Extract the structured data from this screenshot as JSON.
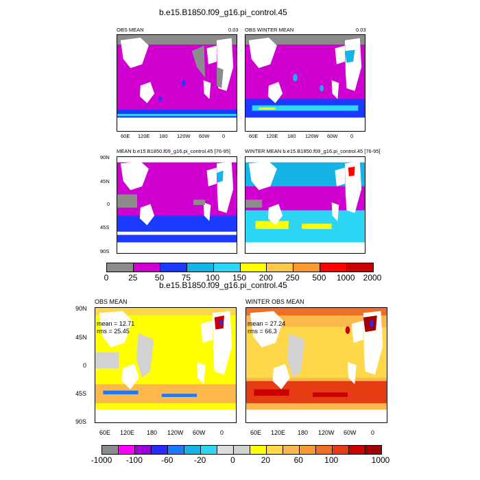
{
  "figure1": {
    "title": "b.e15.B1850.f09_g16.pi_control.45",
    "panels": [
      {
        "title_left": "OBS MEAN",
        "title_right": "0.03"
      },
      {
        "title_left": "OBS WINTER MEAN",
        "title_right": "0.03"
      },
      {
        "title_left": "MEAN b.e15.B1850.f09_g16.pi_control.45 [76-95]",
        "title_right": ""
      },
      {
        "title_left": "WINTER MEAN b.e15.B1850.f09_g16.pi_control.45 [76-95]",
        "title_right": ""
      }
    ],
    "lat_ticks": [
      "90N",
      "45N",
      "0",
      "45S",
      "90S"
    ],
    "lon_ticks": [
      "60E",
      "120E",
      "180",
      "120W",
      "60W",
      "0"
    ],
    "colorbar_labels": [
      "0",
      "25",
      "50",
      "75",
      "100",
      "150",
      "200",
      "250",
      "500",
      "1000",
      "2000"
    ],
    "colorbar_colors": [
      "#8c8c8c",
      "#d000d0",
      "#1a3bff",
      "#14b4e6",
      "#2dd6f5",
      "#ffff00",
      "#fcc84a",
      "#f89a30",
      "#ff0000",
      "#c80000"
    ]
  },
  "figure2": {
    "title": "b.e15.B1850.f09_g16.pi_control.45",
    "panels": [
      {
        "title_left": "OBS MEAN",
        "stat_mean": "mean = 12.71",
        "stat_rms": "rms = 25.45"
      },
      {
        "title_left": "WINTER OBS MEAN",
        "stat_mean": "mean = 27.24",
        "stat_rms": "rms = 66.3"
      }
    ],
    "lat_ticks": [
      "90N",
      "45N",
      "0",
      "45S",
      "90S"
    ],
    "lon_ticks": [
      "60E",
      "120E",
      "180",
      "120W",
      "60W",
      "0"
    ],
    "colorbar_labels": [
      "-1000",
      "-100",
      "-60",
      "-20",
      "0",
      "20",
      "60",
      "100",
      "1000"
    ],
    "colorbar_colors": [
      "#8c8c8c",
      "#ff00ff",
      "#9b00d8",
      "#2828ff",
      "#1e78ff",
      "#14b4e6",
      "#2dd6f5",
      "#dcdcdc",
      "#d2d2d2",
      "#ffff00",
      "#ffd84a",
      "#fcb84a",
      "#f89a30",
      "#f06e28",
      "#e63c14",
      "#c80000",
      "#a00000"
    ]
  },
  "chart_data": [
    {
      "type": "heatmap",
      "title": "OBS MEAN",
      "projection": "cylindrical equidistant, centered 180",
      "xlim": [
        "60E",
        "0"
      ],
      "ylim": [
        "90S",
        "90N"
      ],
      "levels": [
        0,
        25,
        50,
        75,
        100,
        150,
        200,
        250,
        500,
        1000,
        2000
      ],
      "dominant_range": [
        25,
        50
      ]
    },
    {
      "type": "heatmap",
      "title": "OBS WINTER MEAN",
      "levels": [
        0,
        25,
        50,
        75,
        100,
        150,
        200,
        250,
        500,
        1000,
        2000
      ],
      "dominant_range": [
        25,
        75
      ]
    },
    {
      "type": "heatmap",
      "title": "MEAN b.e15.B1850.f09_g16.pi_control.45 [76-95]",
      "levels": [
        0,
        25,
        50,
        75,
        100,
        150,
        200,
        250,
        500,
        1000,
        2000
      ],
      "dominant_range": [
        25,
        50
      ]
    },
    {
      "type": "heatmap",
      "title": "WINTER MEAN b.e15.B1850.f09_g16.pi_control.45 [76-95]",
      "levels": [
        0,
        25,
        50,
        75,
        100,
        150,
        200,
        250,
        500,
        1000,
        2000
      ],
      "dominant_range": [
        50,
        150
      ]
    },
    {
      "type": "heatmap",
      "title": "OBS MEAN",
      "mean": 12.71,
      "rms": 25.45,
      "levels": [
        -1000,
        -100,
        -60,
        -20,
        0,
        20,
        60,
        100,
        1000
      ]
    },
    {
      "type": "heatmap",
      "title": "WINTER OBS MEAN",
      "mean": 27.24,
      "rms": 66.3,
      "levels": [
        -1000,
        -100,
        -60,
        -20,
        0,
        20,
        60,
        100,
        1000
      ]
    }
  ]
}
